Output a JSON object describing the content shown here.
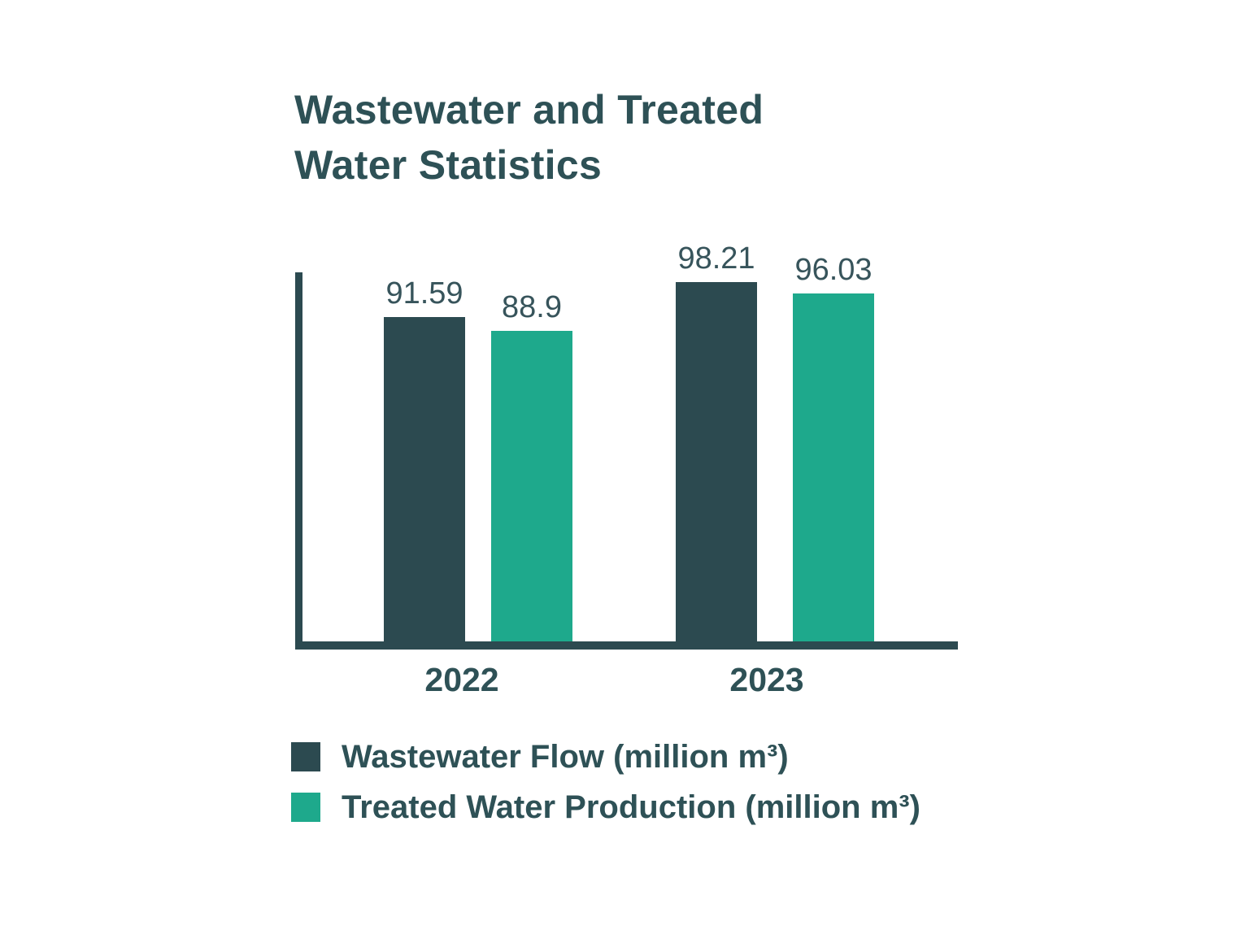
{
  "page": {
    "background": "#ffffff"
  },
  "title": {
    "line1": "Wastewater and Treated",
    "line2": "Water Statistics"
  },
  "colors": {
    "dark_teal": "#2C4A50",
    "green": "#1EA98C",
    "heading_text": "#2E5156",
    "value_label_text": "#37545B",
    "axis": "#2C4A50"
  },
  "chart_data": {
    "type": "bar",
    "title": "Wastewater and Treated Water Statistics",
    "categories": [
      "2022",
      "2023"
    ],
    "series": [
      {
        "name": "Wastewater Flow (million m³)",
        "color": "#2C4A50",
        "values": [
          91.59,
          98.21
        ]
      },
      {
        "name": "Treated Water Production (million m³)",
        "color": "#1EA98C",
        "values": [
          88.9,
          96.03
        ]
      }
    ],
    "bar_value_labels": [
      [
        "91.59",
        "88.9"
      ],
      [
        "98.21",
        "96.03"
      ]
    ],
    "xlabel": "",
    "ylabel": "",
    "ylim": [
      30,
      100
    ],
    "y_axis_tick_labels": [],
    "grid": false,
    "legend_position": "bottom-left"
  },
  "legend": {
    "items": [
      {
        "label": "Wastewater Flow (million m³)",
        "color": "#2C4A50"
      },
      {
        "label": "Treated Water Production (million m³)",
        "color": "#1EA98C"
      }
    ]
  }
}
